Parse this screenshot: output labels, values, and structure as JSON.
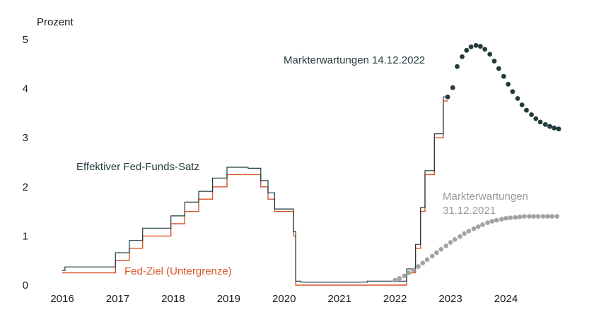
{
  "chart_data": {
    "type": "line",
    "ylabel": "Prozent",
    "ylim": [
      0,
      5
    ],
    "xlim": [
      2016.0,
      2024.95
    ],
    "y_ticks": [
      "0",
      "1",
      "2",
      "3",
      "4",
      "5"
    ],
    "x_ticks": [
      "2016",
      "2017",
      "2018",
      "2019",
      "2020",
      "2021",
      "2022",
      "2023",
      "2024"
    ],
    "grid": false,
    "colors": {
      "effective": "#1f3a3d",
      "target": "#d9532c",
      "expect_2022": "#233b3c",
      "expect_2021": "#a3a3a3",
      "text": "#1a1a1a"
    },
    "annotations": {
      "effective": "Effektiver Fed-Funds-Satz",
      "target": "Fed-Ziel (Untergrenze)",
      "expect_2022": "Markterwartungen 14.12.2022",
      "expect_2021_line1": "Markterwartungen",
      "expect_2021_line2": "31.12.2021"
    },
    "series": [
      {
        "key": "target",
        "style": "step",
        "x": [
          2016.0,
          2016.96,
          2017.21,
          2017.45,
          2017.96,
          2018.21,
          2018.46,
          2018.71,
          2018.97,
          2019.58,
          2019.71,
          2019.83,
          2020.17,
          2020.21,
          2022.21,
          2022.37,
          2022.46,
          2022.54,
          2022.71,
          2022.87,
          2022.95
        ],
        "values": [
          0.25,
          0.5,
          0.75,
          1.0,
          1.25,
          1.5,
          1.75,
          2.0,
          2.25,
          2.0,
          1.75,
          1.5,
          1.0,
          0.0,
          0.25,
          0.75,
          1.5,
          2.25,
          3.0,
          3.75,
          3.75
        ]
      },
      {
        "key": "effective",
        "style": "step",
        "x": [
          2016.0,
          2016.05,
          2016.96,
          2017.21,
          2017.45,
          2017.96,
          2018.21,
          2018.46,
          2018.71,
          2018.97,
          2019.35,
          2019.58,
          2019.71,
          2019.83,
          2020.17,
          2020.21,
          2020.3,
          2021.5,
          2022.21,
          2022.37,
          2022.46,
          2022.54,
          2022.71,
          2022.87,
          2022.95
        ],
        "values": [
          0.3,
          0.37,
          0.66,
          0.91,
          1.16,
          1.41,
          1.69,
          1.91,
          2.18,
          2.4,
          2.38,
          2.13,
          1.88,
          1.55,
          1.09,
          0.08,
          0.06,
          0.08,
          0.33,
          0.83,
          1.58,
          2.33,
          3.08,
          3.83,
          3.83
        ]
      },
      {
        "key": "expect_2022",
        "style": "dots",
        "x": [
          2022.95,
          2023.04,
          2023.12,
          2023.21,
          2023.29,
          2023.37,
          2023.46,
          2023.54,
          2023.62,
          2023.71,
          2023.79,
          2023.87,
          2023.96,
          2024.04,
          2024.12,
          2024.21,
          2024.29,
          2024.37,
          2024.46,
          2024.54,
          2024.62,
          2024.71,
          2024.79,
          2024.87,
          2024.95
        ],
        "values": [
          3.83,
          4.02,
          4.45,
          4.65,
          4.78,
          4.85,
          4.88,
          4.86,
          4.8,
          4.7,
          4.56,
          4.41,
          4.25,
          4.09,
          3.94,
          3.8,
          3.67,
          3.56,
          3.47,
          3.39,
          3.32,
          3.27,
          3.23,
          3.2,
          3.18
        ]
      },
      {
        "key": "expect_2021",
        "style": "dots",
        "x": [
          2022.0,
          2022.08,
          2022.17,
          2022.25,
          2022.33,
          2022.42,
          2022.5,
          2022.58,
          2022.67,
          2022.75,
          2022.83,
          2022.92,
          2023.0,
          2023.08,
          2023.17,
          2023.25,
          2023.33,
          2023.42,
          2023.5,
          2023.58,
          2023.67,
          2023.75,
          2023.83,
          2023.92,
          2024.0,
          2024.08,
          2024.17,
          2024.25,
          2024.33,
          2024.42,
          2024.5,
          2024.58,
          2024.67,
          2024.75,
          2024.83,
          2024.92
        ],
        "values": [
          0.1,
          0.14,
          0.19,
          0.25,
          0.31,
          0.38,
          0.45,
          0.52,
          0.59,
          0.66,
          0.73,
          0.8,
          0.87,
          0.93,
          0.99,
          1.05,
          1.1,
          1.15,
          1.19,
          1.23,
          1.27,
          1.3,
          1.32,
          1.34,
          1.36,
          1.37,
          1.38,
          1.39,
          1.4,
          1.4,
          1.4,
          1.4,
          1.4,
          1.4,
          1.4,
          1.4
        ]
      }
    ]
  }
}
